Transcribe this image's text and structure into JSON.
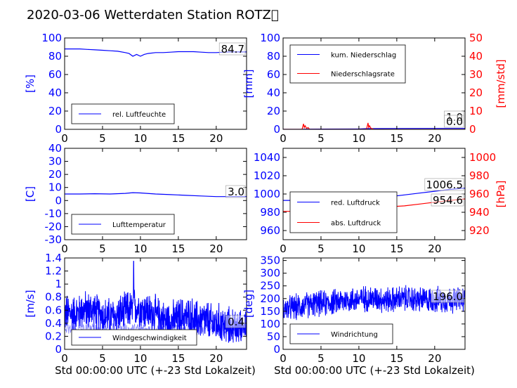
{
  "title": "2020-03-06 Wetterdaten Station ROTZ",
  "title_suffix": "\u0000",
  "xlabel": "Std 00:00:00 UTC (+-23 Std Lokalzeit)",
  "colors": {
    "primary": "#0000ff",
    "secondary": "#ff0000",
    "faint": "#8080ff"
  },
  "chart_data": [
    {
      "type": "line",
      "id": "humidity",
      "xlim": [
        0,
        24
      ],
      "ylim": [
        0,
        100
      ],
      "xticks": [
        0,
        5,
        10,
        15,
        20
      ],
      "yticks": [
        0,
        20,
        40,
        60,
        80,
        100
      ],
      "ylabel": "[%]",
      "legend": "lower-left",
      "annotations": [
        "84.7"
      ],
      "series": [
        {
          "name": "rel. Luftfeuchte",
          "color": "#0000ff",
          "x": [
            0,
            1,
            2,
            3,
            4,
            5,
            6,
            7,
            8,
            8.5,
            9,
            9.5,
            10,
            10.5,
            11,
            12,
            13,
            14,
            15,
            16,
            17,
            18,
            19,
            20,
            21,
            22,
            23,
            24
          ],
          "y": [
            88,
            88,
            88,
            87.5,
            87,
            86.5,
            86,
            85.5,
            84,
            83,
            80,
            82,
            80,
            82,
            83,
            84,
            84,
            84.5,
            85,
            85,
            85,
            84.5,
            84,
            84,
            84.5,
            84.7,
            84.7,
            84.7
          ]
        }
      ]
    },
    {
      "type": "line",
      "id": "precipitation",
      "xlim": [
        0,
        24
      ],
      "ylim": [
        0,
        100
      ],
      "ylim_right": [
        0,
        50
      ],
      "xticks": [
        0,
        5,
        10,
        15,
        20
      ],
      "yticks": [
        0,
        20,
        40,
        60,
        80,
        100
      ],
      "yticks_right": [
        0,
        10,
        20,
        30,
        40,
        50
      ],
      "ylabel": "[mm]",
      "ylabel_right": "[mm/std]",
      "legend": "upper-left",
      "annotations": [
        "1.0",
        "0.0"
      ],
      "series": [
        {
          "name": "kum. Niederschlag",
          "color": "#0000ff",
          "axis": "left",
          "x": [
            0,
            2.5,
            3,
            5,
            10,
            11,
            15,
            20,
            24
          ],
          "y": [
            0,
            0.1,
            0.2,
            0.3,
            0.4,
            0.8,
            0.9,
            1.0,
            1.0
          ]
        },
        {
          "name": "Niederschlagsrate",
          "color": "#ff0000",
          "axis": "right",
          "x": [
            0,
            2.5,
            2.7,
            2.8,
            2.9,
            3.1,
            3.3,
            3.5,
            11,
            11.2,
            11.3,
            11.4,
            11.6,
            12,
            24
          ],
          "y": [
            0,
            0,
            3,
            1,
            2,
            0.5,
            1,
            0,
            0,
            3.5,
            1,
            2,
            0.5,
            0,
            0
          ]
        }
      ]
    },
    {
      "type": "line",
      "id": "temperature",
      "xlim": [
        0,
        24
      ],
      "ylim": [
        -30,
        40
      ],
      "xticks": [
        0,
        5,
        10,
        15,
        20
      ],
      "yticks": [
        -30,
        -20,
        -10,
        0,
        10,
        20,
        30,
        40
      ],
      "ylabel": "[C]",
      "legend": "lower-left",
      "annotations": [
        "3.0"
      ],
      "series": [
        {
          "name": "Lufttemperatur",
          "color": "#0000ff",
          "x": [
            0,
            2,
            4,
            6,
            8,
            9,
            10,
            12,
            14,
            16,
            18,
            20,
            22,
            24
          ],
          "y": [
            5,
            5,
            5.2,
            5,
            5.5,
            6,
            5.8,
            5,
            4.5,
            4,
            3.5,
            3,
            3,
            3
          ]
        }
      ]
    },
    {
      "type": "line",
      "id": "pressure",
      "xlim": [
        0,
        24
      ],
      "ylim": [
        950,
        1050
      ],
      "ylim_right": [
        910,
        1010
      ],
      "xticks": [
        0,
        5,
        10,
        15,
        20
      ],
      "yticks": [
        960,
        980,
        1000,
        1020,
        1040
      ],
      "yticks_right": [
        920,
        940,
        960,
        980,
        1000
      ],
      "ylabel_right": "[hPa]",
      "legend": "lower-left",
      "annotations": [
        "1006.5",
        "954.6"
      ],
      "series": [
        {
          "name": "red. Luftdruck",
          "color": "#0000ff",
          "axis": "left",
          "x": [
            0,
            3,
            5,
            8,
            10,
            12,
            14,
            16,
            18,
            20,
            22,
            24
          ],
          "y": [
            993,
            993,
            993,
            994,
            995,
            996,
            997,
            999,
            1001,
            1003,
            1005,
            1006.5
          ]
        },
        {
          "name": "abs. Luftdruck",
          "color": "#ff0000",
          "axis": "right",
          "x": [
            0,
            3,
            5,
            8,
            10,
            12,
            14,
            16,
            18,
            20,
            22,
            24
          ],
          "y": [
            941,
            941,
            942,
            943,
            944,
            945,
            946,
            947,
            949,
            951,
            953,
            954.6
          ]
        }
      ]
    },
    {
      "type": "line",
      "id": "windspeed",
      "xlim": [
        0,
        24
      ],
      "ylim": [
        0,
        1.4
      ],
      "xticks": [
        0,
        5,
        10,
        15,
        20
      ],
      "yticks": [
        0,
        0.2,
        0.4,
        0.6,
        0.8,
        1.0,
        1.2,
        1.4
      ],
      "ylabel": "[m/s]",
      "legend": "lower-center",
      "annotations": [
        "0.4"
      ],
      "noisy": {
        "base": [
          0.55,
          0.55,
          0.6,
          0.6,
          0.55,
          0.5,
          0.5,
          0.55,
          0.6,
          0.65,
          0.6,
          0.55,
          0.5,
          0.45,
          0.45,
          0.5,
          0.5,
          0.45,
          0.45,
          0.4,
          0.4,
          0.35,
          0.35,
          0.35,
          0.35
        ],
        "amp": 0.35,
        "min": 0.1,
        "spike_x": 9.1,
        "spike_y": 1.35
      },
      "series": [
        {
          "name": "Windgeschwindigkeit",
          "color": "#0000ff"
        }
      ]
    },
    {
      "type": "line",
      "id": "winddir",
      "xlim": [
        0,
        24
      ],
      "ylim": [
        0,
        360
      ],
      "xticks": [
        0,
        5,
        10,
        15,
        20
      ],
      "yticks": [
        0,
        50,
        100,
        150,
        200,
        250,
        300,
        350
      ],
      "ylabel": "[deg]",
      "legend": "lower-left",
      "annotations": [
        "196.0"
      ],
      "noisy": {
        "base": [
          160,
          165,
          170,
          175,
          180,
          180,
          185,
          190,
          195,
          195,
          200,
          200,
          200,
          195,
          195,
          200,
          200,
          195,
          195,
          195,
          195,
          195,
          195,
          195,
          195
        ],
        "amp": 60,
        "min": 60
      },
      "series": [
        {
          "name": "Windrichtung",
          "color": "#0000ff"
        }
      ]
    }
  ]
}
